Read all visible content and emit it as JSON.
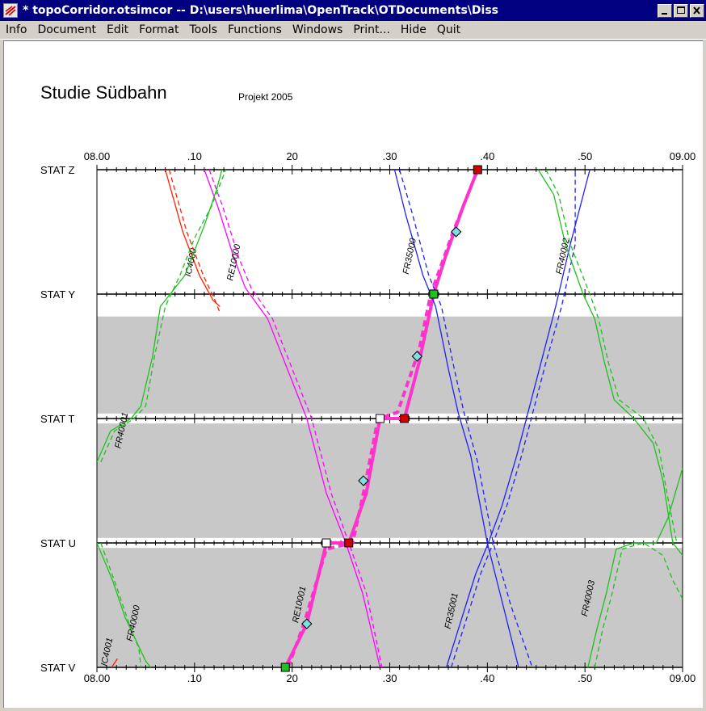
{
  "window": {
    "title": "* topoCorridor.otsimcor  --  D:\\users\\huerlima\\OpenTrack\\OTDocuments\\Diss",
    "icon": "opentrack-app-icon",
    "controls": [
      "minimize-icon",
      "maximize-icon",
      "close-icon"
    ]
  },
  "menu": {
    "items": [
      "Info",
      "Document",
      "Edit",
      "Format",
      "Tools",
      "Functions",
      "Windows",
      "Print...",
      "Hide",
      "Quit"
    ]
  },
  "document": {
    "title": "Studie Südbahn",
    "subtitle": "Projekt 2005"
  },
  "chart_data": {
    "type": "line",
    "x_ticks": [
      "08.00",
      ".10",
      "20",
      ".30",
      ".40",
      ".50",
      "09.00"
    ],
    "x_tick_minutes": [
      0,
      10,
      20,
      30,
      40,
      50,
      60
    ],
    "x_range_minutes": [
      0,
      60
    ],
    "stations": [
      {
        "name": "STAT Z",
        "pos": 0
      },
      {
        "name": "STAT Y",
        "pos": 1
      },
      {
        "name": "STAT T",
        "pos": 2
      },
      {
        "name": "STAT U",
        "pos": 3
      },
      {
        "name": "STAT V",
        "pos": 4
      }
    ],
    "shaded_sections": [
      {
        "from": 1.18,
        "to": 1.96
      },
      {
        "from": 2.04,
        "to": 2.96
      },
      {
        "from": 3.04,
        "to": 4.0
      }
    ],
    "colors": {
      "red": "#ff2000",
      "magenta": "#ff00ff",
      "hot": "#ff33cc",
      "blue": "#2020ff",
      "green": "#20c020",
      "shade": "#c8c8c8",
      "marker_cyan": "#80e0e0",
      "marker_red": "#d00000",
      "marker_green": "#20c020"
    },
    "trains": [
      {
        "name": "IC4000",
        "color": "red",
        "label": "IC4000",
        "label_at": [
          9.9,
          0.75
        ],
        "points": [
          [
            7.0,
            0
          ],
          [
            8.8,
            0.5
          ],
          [
            10.5,
            0.85
          ],
          [
            11.9,
            1.05
          ],
          [
            12.6,
            1.1
          ]
        ]
      },
      {
        "name": "IC4000b",
        "color": "red",
        "label": "",
        "dashed": true,
        "points": [
          [
            7.4,
            0
          ],
          [
            9.2,
            0.5
          ],
          [
            10.9,
            0.85
          ],
          [
            12.1,
            1.05
          ],
          [
            12.6,
            1.15
          ]
        ]
      },
      {
        "name": "RE10000",
        "color": "magenta",
        "label": "RE10000",
        "label_at": [
          14.3,
          0.75
        ],
        "points": [
          [
            11.0,
            0
          ],
          [
            12.4,
            0.3
          ],
          [
            14.0,
            0.7
          ],
          [
            15.2,
            0.95
          ],
          [
            17.5,
            1.2
          ],
          [
            19.5,
            1.6
          ],
          [
            21.5,
            2.0
          ],
          [
            23.5,
            2.6
          ],
          [
            25.5,
            3.0
          ],
          [
            27.2,
            3.4
          ],
          [
            28.7,
            3.9
          ],
          [
            29.0,
            4.0
          ]
        ]
      },
      {
        "name": "RE10000d",
        "color": "magenta",
        "label": "",
        "dashed": true,
        "points": [
          [
            11.5,
            0
          ],
          [
            12.9,
            0.3
          ],
          [
            14.5,
            0.7
          ],
          [
            15.8,
            0.95
          ],
          [
            18.0,
            1.2
          ],
          [
            20.0,
            1.6
          ],
          [
            22.0,
            2.0
          ],
          [
            24.0,
            2.6
          ],
          [
            25.8,
            3.0
          ],
          [
            27.6,
            3.4
          ],
          [
            29.2,
            4.0
          ]
        ]
      },
      {
        "name": "RE10001",
        "color": "hot",
        "label": "RE10001",
        "label_at": [
          21.0,
          3.5
        ],
        "thick": true,
        "points": [
          [
            19.3,
            4.0
          ],
          [
            21.5,
            3.65
          ],
          [
            23.5,
            3.0
          ],
          [
            25.8,
            3.0
          ],
          [
            27.6,
            2.6
          ],
          [
            29.0,
            2.0
          ],
          [
            31.5,
            2.0
          ],
          [
            33.0,
            1.55
          ],
          [
            34.5,
            1.0
          ],
          [
            35.7,
            0.7
          ],
          [
            37.5,
            0.3
          ],
          [
            39.0,
            0
          ]
        ]
      },
      {
        "name": "RE10001d",
        "color": "hot",
        "label": "",
        "dashed": true,
        "thick": true,
        "points": [
          [
            19.6,
            4.0
          ],
          [
            21.2,
            3.65
          ],
          [
            23.5,
            3.05
          ],
          [
            26.2,
            3.0
          ],
          [
            27.3,
            2.6
          ],
          [
            28.8,
            2.0
          ],
          [
            30.8,
            1.95
          ],
          [
            33.0,
            1.45
          ],
          [
            34.2,
            1.0
          ],
          [
            36.5,
            0.5
          ],
          [
            39.0,
            0
          ]
        ]
      },
      {
        "name": "FR35000",
        "color": "blue",
        "label": "FR35000",
        "label_at": [
          32.3,
          0.7
        ],
        "points": [
          [
            30.5,
            0
          ],
          [
            31.6,
            0.35
          ],
          [
            33.4,
            0.85
          ],
          [
            34.7,
            1.1
          ],
          [
            36.0,
            1.6
          ],
          [
            37.0,
            1.95
          ],
          [
            38.3,
            2.3
          ],
          [
            40.0,
            3.0
          ],
          [
            41.6,
            3.5
          ],
          [
            43.2,
            4.0
          ]
        ]
      },
      {
        "name": "FR35000d",
        "color": "blue",
        "label": "",
        "dashed": true,
        "points": [
          [
            31.0,
            0
          ],
          [
            32.3,
            0.35
          ],
          [
            34.0,
            0.85
          ],
          [
            35.3,
            1.1
          ],
          [
            36.6,
            1.6
          ],
          [
            37.6,
            1.95
          ],
          [
            39.0,
            2.35
          ],
          [
            40.6,
            3.0
          ],
          [
            42.4,
            3.5
          ],
          [
            44.6,
            4.0
          ]
        ]
      },
      {
        "name": "FR35001",
        "color": "blue",
        "label": "FR35001",
        "label_at": [
          36.6,
          3.55
        ],
        "points": [
          [
            35.8,
            4.0
          ],
          [
            37.4,
            3.6
          ],
          [
            38.8,
            3.25
          ],
          [
            40.1,
            3.0
          ],
          [
            41.5,
            2.7
          ],
          [
            43.0,
            2.3
          ],
          [
            44.0,
            2.0
          ],
          [
            45.5,
            1.55
          ],
          [
            47.0,
            1.1
          ],
          [
            48.5,
            0.6
          ],
          [
            50.5,
            0
          ]
        ]
      },
      {
        "name": "FR35001d",
        "color": "blue",
        "label": "",
        "dashed": true,
        "points": [
          [
            36.3,
            4.0
          ],
          [
            37.9,
            3.6
          ],
          [
            39.3,
            3.25
          ],
          [
            40.6,
            3.0
          ],
          [
            42.0,
            2.7
          ],
          [
            43.5,
            2.3
          ],
          [
            44.5,
            2.0
          ],
          [
            46.0,
            1.55
          ],
          [
            47.6,
            1.1
          ],
          [
            49.0,
            0.6
          ],
          [
            49.0,
            0
          ]
        ]
      },
      {
        "name": "FR40001",
        "color": "green",
        "label": "FR40001",
        "label_at": [
          2.8,
          2.1
        ],
        "points": [
          [
            0.0,
            2.35
          ],
          [
            1.4,
            2.1
          ],
          [
            3.5,
            2.0
          ],
          [
            4.5,
            1.9
          ],
          [
            5.7,
            1.5
          ],
          [
            6.5,
            1.1
          ],
          [
            7.5,
            1.0
          ],
          [
            9.0,
            0.85
          ],
          [
            11.0,
            0.45
          ],
          [
            12.3,
            0.15
          ],
          [
            12.8,
            0
          ]
        ]
      },
      {
        "name": "FR40001d",
        "color": "green",
        "label": "",
        "dashed": true,
        "points": [
          [
            0.4,
            2.35
          ],
          [
            1.8,
            2.1
          ],
          [
            3.8,
            2.0
          ],
          [
            5.0,
            1.9
          ],
          [
            5.9,
            1.5
          ],
          [
            7.0,
            1.1
          ],
          [
            8.5,
            0.85
          ],
          [
            10.0,
            0.55
          ],
          [
            11.7,
            0.3
          ],
          [
            13.2,
            0
          ]
        ]
      },
      {
        "name": "FR40002",
        "color": "green",
        "label": "FR40002",
        "label_at": [
          48.0,
          0.7
        ],
        "points": [
          [
            45.2,
            0
          ],
          [
            46.8,
            0.2
          ],
          [
            48.0,
            0.6
          ],
          [
            49.8,
            1.0
          ],
          [
            51.0,
            1.2
          ],
          [
            52.0,
            1.55
          ],
          [
            53.0,
            1.85
          ],
          [
            55.0,
            2.0
          ],
          [
            57.0,
            2.2
          ],
          [
            58.0,
            2.5
          ],
          [
            59.0,
            3.0
          ],
          [
            60.0,
            3.1
          ]
        ]
      },
      {
        "name": "FR40002d",
        "color": "green",
        "label": "",
        "dashed": true,
        "points": [
          [
            46.0,
            0
          ],
          [
            47.3,
            0.2
          ],
          [
            48.5,
            0.6
          ],
          [
            50.5,
            1.0
          ],
          [
            51.4,
            1.2
          ],
          [
            52.4,
            1.55
          ],
          [
            53.5,
            1.85
          ],
          [
            56.0,
            2.0
          ],
          [
            57.6,
            2.25
          ],
          [
            58.4,
            2.6
          ],
          [
            59.4,
            3.0
          ]
        ]
      },
      {
        "name": "FR40003",
        "color": "green",
        "label": "FR40003",
        "label_at": [
          50.6,
          3.45
        ],
        "points": [
          [
            50.3,
            4.0
          ],
          [
            51.2,
            3.7
          ],
          [
            52.2,
            3.4
          ],
          [
            53.2,
            3.05
          ],
          [
            55.0,
            3.0
          ],
          [
            57.3,
            3.0
          ],
          [
            58.5,
            2.8
          ],
          [
            60.0,
            2.4
          ]
        ]
      },
      {
        "name": "FR40003d",
        "color": "green",
        "label": "",
        "dashed": true,
        "points": [
          [
            51.0,
            4.0
          ],
          [
            51.8,
            3.7
          ],
          [
            52.8,
            3.4
          ],
          [
            53.8,
            3.05
          ],
          [
            56.0,
            3.0
          ],
          [
            58.0,
            3.1
          ],
          [
            59.0,
            3.3
          ],
          [
            60.0,
            3.45
          ]
        ]
      },
      {
        "name": "FR40000",
        "color": "green",
        "label": "FR40000",
        "label_at": [
          4.0,
          3.65
        ],
        "points": [
          [
            0.0,
            3.0
          ],
          [
            1.6,
            3.3
          ],
          [
            2.9,
            3.6
          ],
          [
            4.1,
            3.8
          ],
          [
            5.0,
            3.95
          ],
          [
            5.5,
            4.0
          ]
        ]
      },
      {
        "name": "FR40000d",
        "color": "green",
        "label": "",
        "dashed": true,
        "points": [
          [
            0.4,
            3.0
          ],
          [
            2.0,
            3.35
          ],
          [
            3.3,
            3.65
          ],
          [
            4.3,
            3.85
          ],
          [
            4.5,
            4.0
          ]
        ]
      },
      {
        "name": "IC4001",
        "color": "red",
        "label": "IC4001",
        "label_at": [
          1.3,
          3.88
        ],
        "points": [
          [
            1.5,
            4.0
          ],
          [
            2.1,
            3.93
          ]
        ]
      }
    ],
    "markers": [
      {
        "t": 39.0,
        "s": 0.0,
        "type": "square",
        "fill": "marker_red"
      },
      {
        "t": 34.5,
        "s": 1.0,
        "type": "square",
        "fill": "marker_green"
      },
      {
        "t": 29.0,
        "s": 2.0,
        "type": "square",
        "fill": "#ffffff"
      },
      {
        "t": 31.5,
        "s": 2.0,
        "type": "square",
        "fill": "marker_red"
      },
      {
        "t": 23.5,
        "s": 3.0,
        "type": "square",
        "fill": "#ffffff"
      },
      {
        "t": 25.8,
        "s": 3.0,
        "type": "square",
        "fill": "marker_red"
      },
      {
        "t": 19.3,
        "s": 4.0,
        "type": "square",
        "fill": "marker_green"
      },
      {
        "t": 36.8,
        "s": 0.5,
        "type": "diamond",
        "fill": "marker_cyan"
      },
      {
        "t": 32.8,
        "s": 1.5,
        "type": "diamond",
        "fill": "marker_cyan"
      },
      {
        "t": 27.3,
        "s": 2.5,
        "type": "diamond",
        "fill": "marker_cyan"
      },
      {
        "t": 21.5,
        "s": 3.65,
        "type": "diamond",
        "fill": "marker_cyan"
      }
    ]
  }
}
